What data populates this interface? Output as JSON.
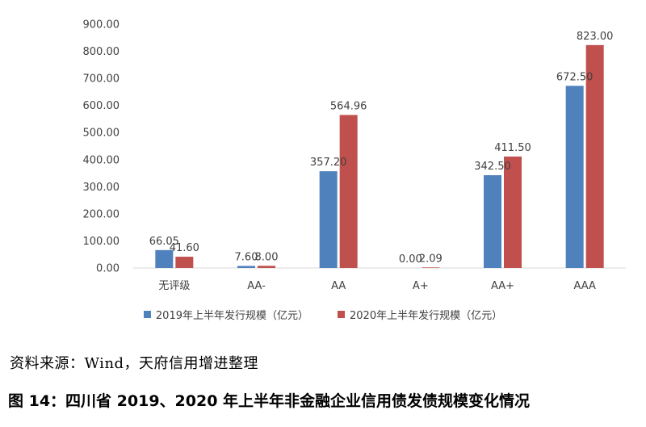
{
  "chart_data": {
    "type": "bar",
    "categories": [
      "无评级",
      "AA-",
      "AA",
      "A+",
      "AA+",
      "AAA"
    ],
    "series": [
      {
        "name": "2019年上半年发行规模（亿元）",
        "color": "#4F81BD",
        "values": [
          66.05,
          7.6,
          357.2,
          0.0,
          342.5,
          672.5
        ],
        "labels": [
          "66.05",
          "7.60",
          "357.20",
          "0.00",
          "342.50",
          "672.50"
        ]
      },
      {
        "name": "2020年上半年发行规模（亿元）",
        "color": "#C0504D",
        "values": [
          41.6,
          8.0,
          564.96,
          2.09,
          411.5,
          823.0
        ],
        "labels": [
          "41.60",
          "8.00",
          "564.96",
          "2.09",
          "411.50",
          "823.00"
        ]
      }
    ],
    "yticks": [
      "0.00",
      "100.00",
      "200.00",
      "300.00",
      "400.00",
      "500.00",
      "600.00",
      "700.00",
      "800.00",
      "900.00"
    ],
    "ylim": [
      0,
      900
    ],
    "grid": false,
    "legend_position": "bottom"
  },
  "source": "资料来源：Wind，天府信用增进整理",
  "caption": "图 14：四川省 2019、2020 年上半年非金融企业信用债发债规模变化情况"
}
